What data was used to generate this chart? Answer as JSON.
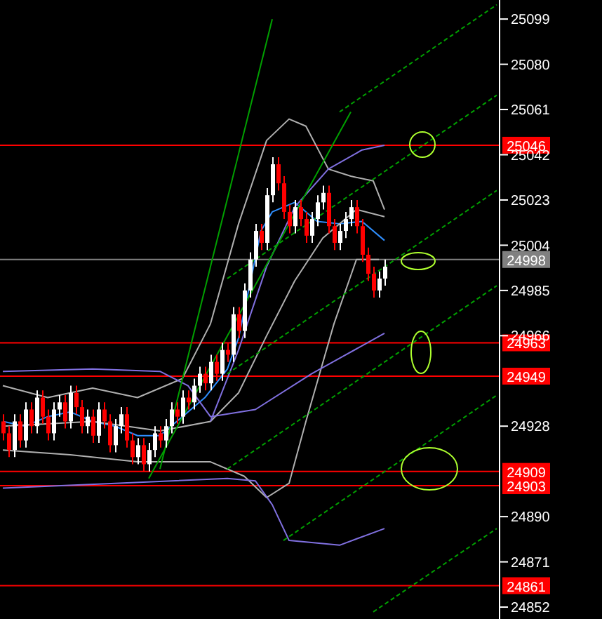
{
  "chart_data": {
    "type": "candlestick",
    "categories": [
      null,
      null,
      null,
      null,
      null,
      null,
      null,
      null,
      null,
      null,
      null,
      null,
      null,
      null,
      null,
      null,
      null,
      null,
      null,
      null,
      null,
      null,
      null,
      null,
      null,
      null,
      null,
      null,
      null,
      null,
      null,
      null,
      null,
      null,
      null,
      null,
      null,
      null,
      null,
      null,
      null,
      null,
      null,
      null,
      null,
      null,
      null,
      null,
      null,
      null,
      null,
      null,
      null,
      null,
      null,
      null,
      null,
      null,
      null,
      null,
      null,
      null,
      null,
      null,
      null,
      null,
      null,
      null,
      null,
      null,
      null,
      null,
      null,
      null,
      null,
      null,
      null,
      null,
      null,
      null,
      null,
      null,
      null,
      null,
      null,
      null,
      null,
      null,
      null
    ],
    "ohlc": [
      [
        24930,
        24933,
        24922,
        24925
      ],
      [
        24925,
        24928,
        24915,
        24918
      ],
      [
        24918,
        24933,
        24915,
        24930
      ],
      [
        24930,
        24933,
        24919,
        24922
      ],
      [
        24922,
        24938,
        24919,
        24935
      ],
      [
        24935,
        24938,
        24925,
        24928
      ],
      [
        24928,
        24943,
        24925,
        24940
      ],
      [
        24940,
        24943,
        24929,
        24932
      ],
      [
        24932,
        24935,
        24922,
        24925
      ],
      [
        24925,
        24938,
        24922,
        24935
      ],
      [
        24935,
        24941,
        24932,
        24938
      ],
      [
        24938,
        24941,
        24927,
        24930
      ],
      [
        24930,
        24945,
        24927,
        24942
      ],
      [
        24942,
        24945,
        24933,
        24936
      ],
      [
        24936,
        24939,
        24925,
        24928
      ],
      [
        24928,
        24935,
        24925,
        24932
      ],
      [
        24932,
        24935,
        24921,
        24924
      ],
      [
        24924,
        24938,
        24921,
        24935
      ],
      [
        24935,
        24938,
        24927,
        24930
      ],
      [
        24930,
        24933,
        24917,
        24920
      ],
      [
        24920,
        24931,
        24917,
        24928
      ],
      [
        24928,
        24936,
        24925,
        24933
      ],
      [
        24933,
        24936,
        24919,
        24922
      ],
      [
        24922,
        24925,
        24912,
        24915
      ],
      [
        24915,
        24923,
        24912,
        24920
      ],
      [
        24920,
        24923,
        24909,
        24912
      ],
      [
        24912,
        24921,
        24909,
        24918
      ],
      [
        24918,
        24928,
        24915,
        24925
      ],
      [
        24925,
        24928,
        24919,
        24922
      ],
      [
        24922,
        24931,
        24919,
        24928
      ],
      [
        24928,
        24938,
        24925,
        24935
      ],
      [
        24935,
        24938,
        24929,
        24932
      ],
      [
        24932,
        24943,
        24929,
        24940
      ],
      [
        24940,
        24943,
        24935,
        24938
      ],
      [
        24938,
        24948,
        24935,
        24945
      ],
      [
        24945,
        24953,
        24942,
        24950
      ],
      [
        24950,
        24953,
        24943,
        24946
      ],
      [
        24946,
        24958,
        24943,
        24955
      ],
      [
        24955,
        24958,
        24947,
        24950
      ],
      [
        24950,
        24963,
        24947,
        24960
      ],
      [
        24960,
        24963,
        24955,
        24958
      ],
      [
        24958,
        24978,
        24955,
        24975
      ],
      [
        24975,
        24978,
        24965,
        24968
      ],
      [
        24968,
        24988,
        24965,
        24985
      ],
      [
        24985,
        25001,
        24982,
        24998
      ],
      [
        24998,
        25013,
        24995,
        25010
      ],
      [
        25010,
        25013,
        25002,
        25005
      ],
      [
        25005,
        25028,
        25002,
        25025
      ],
      [
        25025,
        25041,
        25022,
        25038
      ],
      [
        25038,
        25041,
        25027,
        25030
      ],
      [
        25030,
        25033,
        25015,
        25018
      ],
      [
        25018,
        25021,
        25009,
        25012
      ],
      [
        25012,
        25023,
        25009,
        25020
      ],
      [
        25020,
        25023,
        25012,
        25015
      ],
      [
        25015,
        25018,
        25005,
        25008
      ],
      [
        25008,
        25018,
        25005,
        25015
      ],
      [
        25015,
        25025,
        25012,
        25022
      ],
      [
        25022,
        25029,
        25019,
        25026
      ],
      [
        25026,
        25029,
        25009,
        25012
      ],
      [
        25012,
        25015,
        25002,
        25005
      ],
      [
        25005,
        25013,
        25002,
        25010
      ],
      [
        25010,
        25018,
        25007,
        25015
      ],
      [
        25015,
        25023,
        25012,
        25020
      ],
      [
        25020,
        25023,
        25009,
        25012
      ],
      [
        25012,
        25015,
        24997,
        25000
      ],
      [
        25000,
        25003,
        24989,
        24992
      ],
      [
        24992,
        24995,
        24982,
        24985
      ],
      [
        24985,
        24993,
        24982,
        24990
      ],
      [
        24990,
        24998,
        24987,
        24995
      ],
      null,
      null,
      null,
      null,
      null,
      null,
      null,
      null,
      null,
      null,
      null,
      null,
      null,
      null,
      null,
      null,
      null,
      null,
      null,
      null
    ],
    "series": [
      {
        "type": "line",
        "color": "#2f8fff",
        "values": [
          24930,
          null,
          null,
          null,
          24928,
          null,
          null,
          null,
          24932,
          null,
          null,
          null,
          24934,
          null,
          null,
          null,
          24930,
          null,
          null,
          null,
          24928,
          null,
          null,
          null,
          24924,
          null,
          null,
          null,
          24924,
          null,
          null,
          null,
          24932,
          null,
          null,
          null,
          24940,
          null,
          null,
          null,
          24952,
          null,
          24965,
          null,
          null,
          null,
          25010,
          null,
          25018,
          null,
          null,
          null,
          25022,
          null,
          null,
          null,
          25014,
          null,
          null,
          null,
          25013,
          null,
          null,
          null,
          25014,
          null,
          null,
          null,
          25006,
          null,
          null,
          null,
          null,
          null,
          null,
          null,
          null,
          null,
          null,
          null,
          null,
          null,
          null,
          null,
          null,
          null,
          null,
          null,
          null
        ]
      },
      {
        "type": "line",
        "color": "#b0b0b0",
        "values": [
          24945,
          null,
          null,
          null,
          null,
          null,
          null,
          null,
          24940,
          null,
          null,
          null,
          null,
          null,
          null,
          null,
          24944,
          null,
          null,
          null,
          null,
          null,
          null,
          null,
          24940,
          null,
          null,
          null,
          null,
          null,
          null,
          null,
          24948,
          null,
          null,
          null,
          null,
          24971,
          null,
          null,
          null,
          null,
          25013,
          null,
          null,
          null,
          null,
          25048,
          null,
          null,
          null,
          25057,
          null,
          null,
          25054,
          null,
          null,
          null,
          25036,
          null,
          null,
          null,
          25033,
          null,
          null,
          null,
          25031,
          null,
          25019,
          null,
          null,
          null,
          null,
          null,
          null,
          null,
          null,
          null,
          null,
          null,
          null,
          null,
          null,
          null,
          null,
          null,
          null,
          null,
          null
        ]
      },
      {
        "type": "line",
        "color": "#b0b0b0",
        "values": [
          24928,
          null,
          null,
          null,
          null,
          null,
          null,
          null,
          null,
          null,
          null,
          null,
          null,
          null,
          null,
          null,
          24930,
          null,
          null,
          null,
          null,
          null,
          null,
          null,
          null,
          null,
          null,
          null,
          24926,
          null,
          null,
          null,
          null,
          null,
          null,
          null,
          null,
          24930,
          null,
          null,
          null,
          null,
          24942,
          null,
          null,
          null,
          null,
          24966,
          null,
          null,
          null,
          null,
          24989,
          null,
          null,
          null,
          null,
          25007,
          null,
          null,
          null,
          null,
          null,
          25019,
          null,
          null,
          null,
          null,
          25016,
          null,
          null,
          null,
          null,
          null,
          null,
          null,
          null,
          null,
          null,
          null,
          null,
          null,
          null,
          null,
          null,
          null,
          null,
          null,
          null
        ]
      },
      {
        "type": "line",
        "color": "#b0b0b0",
        "values": [
          24918,
          null,
          null,
          null,
          null,
          null,
          null,
          null,
          null,
          null,
          null,
          null,
          24916,
          null,
          null,
          null,
          null,
          null,
          null,
          null,
          null,
          null,
          null,
          null,
          24913,
          null,
          null,
          null,
          null,
          null,
          null,
          null,
          null,
          null,
          null,
          null,
          null,
          24913,
          null,
          null,
          null,
          null,
          null,
          24907,
          null,
          null,
          null,
          24898,
          null,
          null,
          null,
          24904,
          null,
          null,
          24930,
          null,
          null,
          null,
          null,
          24971,
          null,
          null,
          null,
          24998,
          null,
          null,
          null,
          24998,
          null,
          null,
          null,
          null,
          null,
          null,
          null,
          null,
          null,
          null,
          null,
          null,
          null,
          null,
          null,
          null,
          null,
          null,
          null,
          null,
          null
        ]
      },
      {
        "type": "line",
        "color": "#8070e0",
        "values": [
          null,
          null,
          null,
          null,
          null,
          null,
          null,
          null,
          null,
          null,
          null,
          null,
          null,
          null,
          null,
          null,
          null,
          null,
          null,
          null,
          null,
          null,
          null,
          null,
          null,
          null,
          null,
          null,
          null,
          null,
          null,
          null,
          null,
          null,
          null,
          null,
          null,
          24930,
          null,
          null,
          null,
          null,
          24960,
          null,
          null,
          null,
          null,
          24995,
          null,
          null,
          null,
          null,
          25020,
          null,
          null,
          null,
          null,
          null,
          25036,
          null,
          null,
          null,
          null,
          null,
          25044,
          null,
          null,
          null,
          25046,
          null,
          null,
          null,
          null,
          null,
          null,
          null,
          null,
          null,
          null,
          null,
          null,
          null,
          null,
          null,
          null,
          null,
          null,
          null,
          null
        ]
      },
      {
        "type": "line",
        "color": "#8070e0",
        "values": [
          24951,
          null,
          null,
          null,
          null,
          null,
          null,
          null,
          null,
          null,
          null,
          null,
          null,
          null,
          null,
          null,
          24952,
          null,
          null,
          null,
          null,
          null,
          null,
          null,
          null,
          null,
          null,
          null,
          24951,
          null,
          null,
          null,
          null,
          24945,
          null,
          null,
          null,
          24932,
          null,
          null,
          null,
          null,
          null,
          null,
          null,
          24935,
          null,
          null,
          null,
          null,
          null,
          null,
          null,
          null,
          null,
          24950,
          null,
          null,
          null,
          null,
          null,
          null,
          null,
          null,
          null,
          null,
          null,
          null,
          24967,
          null,
          null,
          null,
          null,
          null,
          null,
          null,
          null,
          null,
          null,
          null,
          null,
          null,
          null,
          null,
          null,
          null,
          null,
          null,
          null
        ]
      },
      {
        "type": "line",
        "color": "#8070e0",
        "values": [
          24902,
          null,
          null,
          null,
          null,
          null,
          null,
          null,
          null,
          null,
          null,
          null,
          null,
          null,
          null,
          null,
          null,
          null,
          null,
          null,
          24904,
          null,
          null,
          null,
          null,
          null,
          null,
          null,
          null,
          null,
          null,
          null,
          null,
          null,
          null,
          null,
          null,
          null,
          null,
          null,
          24906,
          null,
          null,
          null,
          null,
          24905,
          null,
          null,
          24895,
          null,
          null,
          24880,
          null,
          null,
          null,
          null,
          null,
          null,
          null,
          null,
          24878,
          null,
          null,
          null,
          null,
          null,
          null,
          null,
          24885,
          null,
          null,
          null,
          null,
          null,
          null,
          null,
          null,
          null,
          null,
          null,
          null,
          null,
          null,
          null,
          null,
          null,
          null,
          null,
          null
        ]
      },
      {
        "type": "line",
        "color": "#00a000",
        "line_style": "solid",
        "values": [
          null,
          null,
          null,
          null,
          null,
          null,
          null,
          null,
          null,
          null,
          null,
          null,
          null,
          null,
          null,
          null,
          null,
          null,
          null,
          null,
          null,
          null,
          null,
          null,
          null,
          null,
          null,
          null,
          24910,
          null,
          null,
          null,
          null,
          null,
          null,
          null,
          null,
          null,
          null,
          null,
          null,
          null,
          null,
          null,
          null,
          null,
          null,
          null,
          25099,
          null,
          null,
          null,
          null,
          null,
          null,
          null,
          null,
          null,
          null,
          null,
          null,
          null,
          null,
          null,
          null,
          null,
          null,
          null,
          null,
          null,
          null,
          null,
          null,
          null,
          null,
          null,
          null,
          null,
          null,
          null,
          null,
          null,
          null,
          null,
          null,
          null,
          null,
          null,
          null
        ]
      },
      {
        "type": "line",
        "color": "#00a000",
        "line_style": "solid",
        "values": [
          null,
          null,
          null,
          null,
          null,
          null,
          null,
          null,
          null,
          null,
          null,
          null,
          null,
          null,
          null,
          null,
          null,
          null,
          null,
          null,
          null,
          null,
          null,
          null,
          null,
          null,
          24906,
          null,
          null,
          null,
          null,
          null,
          null,
          null,
          null,
          null,
          null,
          null,
          null,
          null,
          null,
          null,
          null,
          null,
          null,
          null,
          null,
          null,
          null,
          null,
          null,
          null,
          null,
          null,
          null,
          null,
          null,
          null,
          null,
          null,
          null,
          null,
          25060,
          null,
          null,
          null,
          null,
          null,
          null,
          null,
          null,
          null,
          null,
          null,
          null,
          null,
          null,
          null,
          null,
          null,
          null,
          null,
          null,
          null,
          null,
          null,
          null,
          null,
          null
        ]
      },
      {
        "type": "line",
        "color": "#00a000",
        "line_style": "dashed",
        "values": [
          null,
          null,
          null,
          null,
          null,
          null,
          null,
          null,
          null,
          null,
          null,
          null,
          null,
          null,
          null,
          null,
          null,
          null,
          null,
          null,
          null,
          null,
          null,
          null,
          null,
          null,
          null,
          null,
          null,
          null,
          null,
          null,
          null,
          null,
          null,
          null,
          null,
          null,
          null,
          null,
          null,
          null,
          null,
          null,
          null,
          null,
          null,
          null,
          null,
          null,
          null,
          null,
          null,
          null,
          null,
          null,
          null,
          null,
          null,
          null,
          25060,
          null,
          null,
          null,
          null,
          null,
          null,
          null,
          null,
          null,
          null,
          null,
          null,
          null,
          null,
          null,
          null,
          null,
          null,
          null,
          null,
          null,
          null,
          null,
          null,
          null,
          null,
          null,
          25105
        ]
      },
      {
        "type": "line",
        "color": "#00a000",
        "line_style": "dashed",
        "values": [
          null,
          null,
          null,
          null,
          null,
          null,
          null,
          null,
          null,
          null,
          null,
          null,
          null,
          null,
          null,
          null,
          null,
          null,
          null,
          null,
          null,
          null,
          null,
          null,
          null,
          null,
          null,
          null,
          null,
          null,
          null,
          null,
          null,
          null,
          null,
          null,
          null,
          null,
          null,
          null,
          24990,
          null,
          null,
          null,
          null,
          null,
          null,
          null,
          null,
          null,
          null,
          null,
          null,
          null,
          null,
          null,
          null,
          null,
          null,
          null,
          null,
          null,
          null,
          null,
          null,
          null,
          null,
          null,
          null,
          null,
          null,
          null,
          null,
          null,
          null,
          null,
          null,
          null,
          null,
          null,
          null,
          null,
          null,
          null,
          null,
          null,
          null,
          null,
          25067
        ]
      },
      {
        "type": "line",
        "color": "#00a000",
        "line_style": "dashed",
        "values": [
          null,
          null,
          null,
          null,
          null,
          null,
          null,
          null,
          null,
          null,
          null,
          null,
          null,
          null,
          null,
          null,
          null,
          null,
          null,
          null,
          null,
          null,
          null,
          null,
          null,
          null,
          null,
          null,
          null,
          null,
          null,
          null,
          null,
          null,
          null,
          null,
          null,
          null,
          null,
          null,
          24950,
          null,
          null,
          null,
          null,
          null,
          null,
          null,
          null,
          null,
          null,
          null,
          null,
          null,
          null,
          null,
          null,
          null,
          null,
          null,
          null,
          null,
          null,
          null,
          null,
          null,
          null,
          null,
          null,
          null,
          null,
          null,
          null,
          null,
          null,
          null,
          null,
          null,
          null,
          null,
          null,
          null,
          null,
          null,
          null,
          null,
          null,
          null,
          25027
        ]
      },
      {
        "type": "line",
        "color": "#00a000",
        "line_style": "dashed",
        "values": [
          null,
          null,
          null,
          null,
          null,
          null,
          null,
          null,
          null,
          null,
          null,
          null,
          null,
          null,
          null,
          null,
          null,
          null,
          null,
          null,
          null,
          null,
          null,
          null,
          null,
          null,
          null,
          null,
          null,
          null,
          null,
          null,
          null,
          null,
          null,
          null,
          null,
          null,
          null,
          null,
          24910,
          null,
          null,
          null,
          null,
          null,
          null,
          null,
          null,
          null,
          null,
          null,
          null,
          null,
          null,
          null,
          null,
          null,
          null,
          null,
          null,
          null,
          null,
          null,
          null,
          null,
          null,
          null,
          null,
          null,
          null,
          null,
          null,
          null,
          null,
          null,
          null,
          null,
          null,
          null,
          null,
          null,
          null,
          null,
          null,
          null,
          null,
          null,
          24987
        ]
      },
      {
        "type": "line",
        "color": "#00a000",
        "line_style": "dashed",
        "values": [
          null,
          null,
          null,
          null,
          null,
          null,
          null,
          null,
          null,
          null,
          null,
          null,
          null,
          null,
          null,
          null,
          null,
          null,
          null,
          null,
          null,
          null,
          null,
          null,
          null,
          null,
          null,
          null,
          null,
          null,
          null,
          null,
          null,
          null,
          null,
          null,
          null,
          null,
          null,
          null,
          null,
          null,
          null,
          null,
          null,
          null,
          null,
          null,
          null,
          null,
          24880,
          null,
          null,
          null,
          null,
          null,
          null,
          null,
          null,
          null,
          null,
          null,
          null,
          null,
          null,
          null,
          null,
          null,
          null,
          null,
          null,
          null,
          null,
          null,
          null,
          null,
          null,
          null,
          null,
          null,
          null,
          null,
          null,
          null,
          null,
          null,
          null,
          null,
          24941
        ]
      },
      {
        "type": "line",
        "color": "#00a000",
        "line_style": "dashed",
        "values": [
          null,
          null,
          null,
          null,
          null,
          null,
          null,
          null,
          null,
          null,
          null,
          null,
          null,
          null,
          null,
          null,
          null,
          null,
          null,
          null,
          null,
          null,
          null,
          null,
          null,
          null,
          null,
          null,
          null,
          null,
          null,
          null,
          null,
          null,
          null,
          null,
          null,
          null,
          null,
          null,
          null,
          null,
          null,
          null,
          null,
          null,
          null,
          null,
          null,
          null,
          null,
          null,
          null,
          null,
          null,
          null,
          null,
          null,
          null,
          null,
          null,
          null,
          null,
          null,
          null,
          null,
          24850,
          null,
          null,
          null,
          null,
          null,
          null,
          null,
          null,
          null,
          null,
          null,
          null,
          null,
          null,
          null,
          null,
          null,
          null,
          null,
          null,
          null,
          24885
        ]
      }
    ],
    "ylim": [
      24847,
      25107
    ],
    "yticks": [
      25099,
      25080,
      25061,
      25042,
      25023,
      25004,
      24985,
      24966,
      24928,
      24890,
      24871,
      24852
    ],
    "ref_lines": [
      {
        "axis": "y",
        "value": 25046,
        "label": "25046",
        "color": "#ff0000"
      },
      {
        "axis": "y",
        "value": 24998,
        "label": "24998",
        "color": "#808080"
      },
      {
        "axis": "y",
        "value": 24963,
        "label": "24963",
        "color": "#ff0000"
      },
      {
        "axis": "y",
        "value": 24949,
        "label": "24949",
        "color": "#ff0000"
      },
      {
        "axis": "y",
        "value": 24909,
        "label": "24909",
        "color": "#ff0000"
      },
      {
        "axis": "y",
        "value": 24903,
        "label": "24903",
        "color": "#ff0000"
      },
      {
        "axis": "y",
        "value": 24861,
        "label": "24861",
        "color": "#ff0000"
      }
    ],
    "tick_labels": "y"
  }
}
